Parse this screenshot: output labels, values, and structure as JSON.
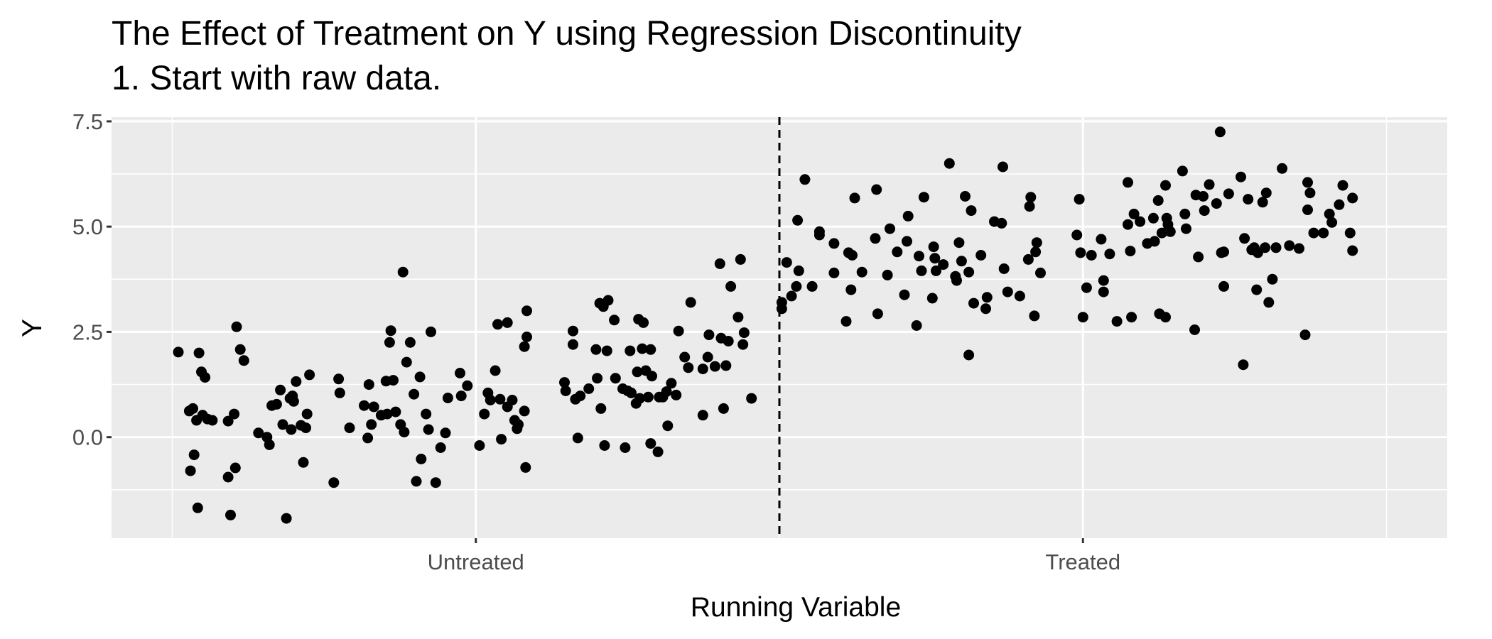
{
  "chart_data": {
    "type": "scatter",
    "title": "The Effect of Treatment on Y using Regression Discontinuity",
    "subtitle": "1. Start with raw data.",
    "xlabel": "Running Variable",
    "ylabel": "Y",
    "xlim": [
      -0.05,
      1.05
    ],
    "ylim": [
      -2.4,
      7.6
    ],
    "x_ticks": [
      {
        "value": 0.25,
        "label": "Untreated"
      },
      {
        "value": 0.75,
        "label": "Treated"
      }
    ],
    "y_ticks": [
      {
        "value": 0,
        "label": "0.0"
      },
      {
        "value": 2.5,
        "label": "2.5"
      },
      {
        "value": 5,
        "label": "5.0"
      },
      {
        "value": 7.5,
        "label": "7.5"
      }
    ],
    "cutoff": 0.5,
    "grid": true,
    "points": [
      [
        0.005,
        2.02
      ],
      [
        0.014,
        0.62
      ],
      [
        0.015,
        -0.8
      ],
      [
        0.017,
        0.68
      ],
      [
        0.018,
        -0.42
      ],
      [
        0.02,
        0.4
      ],
      [
        0.021,
        -1.68
      ],
      [
        0.022,
        2.0
      ],
      [
        0.024,
        1.55
      ],
      [
        0.025,
        0.52
      ],
      [
        0.027,
        1.42
      ],
      [
        0.029,
        0.43
      ],
      [
        0.033,
        0.4
      ],
      [
        0.046,
        0.38
      ],
      [
        0.046,
        -0.95
      ],
      [
        0.048,
        -1.85
      ],
      [
        0.051,
        0.55
      ],
      [
        0.052,
        -0.73
      ],
      [
        0.053,
        2.62
      ],
      [
        0.056,
        2.08
      ],
      [
        0.059,
        1.82
      ],
      [
        0.071,
        0.1
      ],
      [
        0.078,
        0.0
      ],
      [
        0.08,
        -0.18
      ],
      [
        0.082,
        0.75
      ],
      [
        0.086,
        0.78
      ],
      [
        0.089,
        1.12
      ],
      [
        0.091,
        0.3
      ],
      [
        0.094,
        -1.93
      ],
      [
        0.097,
        0.92
      ],
      [
        0.098,
        0.18
      ],
      [
        0.099,
        0.98
      ],
      [
        0.1,
        0.85
      ],
      [
        0.102,
        1.32
      ],
      [
        0.106,
        0.28
      ],
      [
        0.108,
        -0.6
      ],
      [
        0.11,
        0.22
      ],
      [
        0.111,
        0.55
      ],
      [
        0.113,
        1.48
      ],
      [
        0.133,
        -1.08
      ],
      [
        0.137,
        1.38
      ],
      [
        0.138,
        1.05
      ],
      [
        0.146,
        0.22
      ],
      [
        0.158,
        0.75
      ],
      [
        0.161,
        -0.02
      ],
      [
        0.162,
        1.25
      ],
      [
        0.164,
        0.3
      ],
      [
        0.166,
        0.72
      ],
      [
        0.172,
        0.52
      ],
      [
        0.176,
        1.33
      ],
      [
        0.177,
        0.55
      ],
      [
        0.179,
        2.25
      ],
      [
        0.18,
        2.53
      ],
      [
        0.182,
        1.35
      ],
      [
        0.184,
        0.6
      ],
      [
        0.188,
        0.3
      ],
      [
        0.19,
        3.92
      ],
      [
        0.191,
        0.12
      ],
      [
        0.193,
        1.78
      ],
      [
        0.196,
        2.25
      ],
      [
        0.199,
        1.02
      ],
      [
        0.201,
        -1.05
      ],
      [
        0.204,
        1.43
      ],
      [
        0.205,
        -0.52
      ],
      [
        0.209,
        0.55
      ],
      [
        0.211,
        0.18
      ],
      [
        0.213,
        2.5
      ],
      [
        0.217,
        -1.08
      ],
      [
        0.221,
        -0.25
      ],
      [
        0.225,
        0.1
      ],
      [
        0.227,
        0.93
      ],
      [
        0.237,
        1.52
      ],
      [
        0.238,
        0.98
      ],
      [
        0.243,
        1.22
      ],
      [
        0.253,
        -0.2
      ],
      [
        0.257,
        0.55
      ],
      [
        0.26,
        1.05
      ],
      [
        0.262,
        0.88
      ],
      [
        0.266,
        1.58
      ],
      [
        0.268,
        2.68
      ],
      [
        0.27,
        0.9
      ],
      [
        0.271,
        -0.05
      ],
      [
        0.276,
        2.72
      ],
      [
        0.276,
        0.72
      ],
      [
        0.28,
        0.88
      ],
      [
        0.282,
        0.4
      ],
      [
        0.284,
        0.2
      ],
      [
        0.285,
        0.3
      ],
      [
        0.29,
        0.62
      ],
      [
        0.29,
        2.15
      ],
      [
        0.291,
        -0.72
      ],
      [
        0.292,
        2.38
      ],
      [
        0.292,
        3.0
      ],
      [
        0.323,
        1.3
      ],
      [
        0.324,
        1.1
      ],
      [
        0.33,
        2.2
      ],
      [
        0.33,
        2.52
      ],
      [
        0.332,
        0.9
      ],
      [
        0.334,
        -0.02
      ],
      [
        0.336,
        0.98
      ],
      [
        0.343,
        1.15
      ],
      [
        0.349,
        2.08
      ],
      [
        0.35,
        1.4
      ],
      [
        0.352,
        3.18
      ],
      [
        0.353,
        0.68
      ],
      [
        0.355,
        3.1
      ],
      [
        0.356,
        -0.2
      ],
      [
        0.358,
        2.05
      ],
      [
        0.359,
        3.25
      ],
      [
        0.364,
        2.78
      ],
      [
        0.365,
        1.4
      ],
      [
        0.371,
        1.15
      ],
      [
        0.373,
        -0.25
      ],
      [
        0.375,
        1.1
      ],
      [
        0.377,
        2.05
      ],
      [
        0.378,
        1.05
      ],
      [
        0.382,
        0.8
      ],
      [
        0.383,
        1.55
      ],
      [
        0.384,
        2.8
      ],
      [
        0.385,
        0.92
      ],
      [
        0.387,
        2.1
      ],
      [
        0.388,
        2.72
      ],
      [
        0.39,
        1.58
      ],
      [
        0.392,
        0.95
      ],
      [
        0.394,
        2.08
      ],
      [
        0.394,
        -0.15
      ],
      [
        0.395,
        1.45
      ],
      [
        0.4,
        -0.35
      ],
      [
        0.401,
        0.95
      ],
      [
        0.404,
        0.95
      ],
      [
        0.407,
        1.08
      ],
      [
        0.408,
        0.27
      ],
      [
        0.411,
        1.28
      ],
      [
        0.415,
        1.0
      ],
      [
        0.417,
        2.52
      ],
      [
        0.422,
        1.9
      ],
      [
        0.425,
        1.65
      ],
      [
        0.427,
        3.2
      ],
      [
        0.437,
        0.52
      ],
      [
        0.437,
        1.62
      ],
      [
        0.441,
        1.9
      ],
      [
        0.442,
        2.43
      ],
      [
        0.447,
        1.68
      ],
      [
        0.451,
        4.12
      ],
      [
        0.452,
        2.35
      ],
      [
        0.454,
        0.68
      ],
      [
        0.456,
        1.7
      ],
      [
        0.458,
        2.28
      ],
      [
        0.46,
        3.58
      ],
      [
        0.466,
        2.85
      ],
      [
        0.468,
        4.22
      ],
      [
        0.47,
        2.2
      ],
      [
        0.471,
        2.48
      ],
      [
        0.477,
        0.92
      ],
      [
        0.502,
        3.05
      ],
      [
        0.502,
        3.2
      ],
      [
        0.506,
        4.15
      ],
      [
        0.51,
        3.35
      ],
      [
        0.514,
        3.58
      ],
      [
        0.515,
        5.15
      ],
      [
        0.516,
        3.95
      ],
      [
        0.521,
        6.12
      ],
      [
        0.527,
        3.58
      ],
      [
        0.533,
        4.8
      ],
      [
        0.533,
        4.88
      ],
      [
        0.545,
        3.9
      ],
      [
        0.545,
        4.6
      ],
      [
        0.555,
        2.75
      ],
      [
        0.557,
        4.38
      ],
      [
        0.559,
        3.5
      ],
      [
        0.56,
        4.32
      ],
      [
        0.562,
        5.68
      ],
      [
        0.568,
        3.92
      ],
      [
        0.579,
        4.72
      ],
      [
        0.58,
        5.88
      ],
      [
        0.581,
        2.93
      ],
      [
        0.589,
        3.85
      ],
      [
        0.591,
        4.95
      ],
      [
        0.597,
        4.4
      ],
      [
        0.603,
        3.38
      ],
      [
        0.605,
        4.65
      ],
      [
        0.606,
        5.25
      ],
      [
        0.613,
        2.65
      ],
      [
        0.615,
        4.3
      ],
      [
        0.617,
        3.95
      ],
      [
        0.619,
        5.7
      ],
      [
        0.626,
        3.3
      ],
      [
        0.627,
        4.52
      ],
      [
        0.628,
        4.25
      ],
      [
        0.629,
        3.95
      ],
      [
        0.635,
        4.1
      ],
      [
        0.64,
        6.5
      ],
      [
        0.645,
        3.82
      ],
      [
        0.646,
        3.72
      ],
      [
        0.648,
        4.62
      ],
      [
        0.65,
        4.18
      ],
      [
        0.653,
        5.72
      ],
      [
        0.656,
        1.95
      ],
      [
        0.656,
        3.92
      ],
      [
        0.658,
        5.38
      ],
      [
        0.66,
        3.18
      ],
      [
        0.666,
        4.32
      ],
      [
        0.67,
        3.05
      ],
      [
        0.671,
        3.32
      ],
      [
        0.677,
        5.12
      ],
      [
        0.683,
        5.08
      ],
      [
        0.684,
        6.42
      ],
      [
        0.685,
        4.0
      ],
      [
        0.688,
        3.45
      ],
      [
        0.698,
        3.35
      ],
      [
        0.705,
        4.22
      ],
      [
        0.706,
        5.48
      ],
      [
        0.707,
        5.7
      ],
      [
        0.71,
        2.88
      ],
      [
        0.711,
        4.4
      ],
      [
        0.712,
        4.62
      ],
      [
        0.715,
        3.9
      ],
      [
        0.745,
        4.8
      ],
      [
        0.747,
        5.65
      ],
      [
        0.748,
        4.38
      ],
      [
        0.75,
        2.85
      ],
      [
        0.753,
        3.55
      ],
      [
        0.757,
        4.32
      ],
      [
        0.765,
        4.7
      ],
      [
        0.767,
        3.45
      ],
      [
        0.767,
        3.72
      ],
      [
        0.772,
        4.35
      ],
      [
        0.778,
        2.75
      ],
      [
        0.787,
        5.05
      ],
      [
        0.787,
        6.05
      ],
      [
        0.789,
        4.42
      ],
      [
        0.79,
        2.85
      ],
      [
        0.792,
        5.3
      ],
      [
        0.797,
        5.12
      ],
      [
        0.803,
        4.6
      ],
      [
        0.808,
        5.2
      ],
      [
        0.809,
        4.65
      ],
      [
        0.812,
        5.62
      ],
      [
        0.813,
        2.93
      ],
      [
        0.815,
        4.85
      ],
      [
        0.818,
        5.98
      ],
      [
        0.818,
        2.85
      ],
      [
        0.819,
        5.2
      ],
      [
        0.82,
        5.05
      ],
      [
        0.822,
        4.88
      ],
      [
        0.832,
        6.32
      ],
      [
        0.834,
        5.3
      ],
      [
        0.835,
        4.95
      ],
      [
        0.843,
        5.75
      ],
      [
        0.845,
        4.28
      ],
      [
        0.842,
        2.55
      ],
      [
        0.849,
        5.72
      ],
      [
        0.85,
        5.38
      ],
      [
        0.854,
        6.0
      ],
      [
        0.86,
        5.55
      ],
      [
        0.863,
        7.25
      ],
      [
        0.864,
        4.38
      ],
      [
        0.866,
        3.58
      ],
      [
        0.866,
        4.4
      ],
      [
        0.87,
        5.78
      ],
      [
        0.88,
        6.18
      ],
      [
        0.882,
        1.72
      ],
      [
        0.883,
        4.72
      ],
      [
        0.886,
        5.65
      ],
      [
        0.889,
        4.45
      ],
      [
        0.891,
        4.5
      ],
      [
        0.893,
        3.5
      ],
      [
        0.894,
        4.38
      ],
      [
        0.898,
        5.58
      ],
      [
        0.9,
        4.5
      ],
      [
        0.901,
        5.8
      ],
      [
        0.903,
        3.2
      ],
      [
        0.906,
        3.75
      ],
      [
        0.909,
        4.5
      ],
      [
        0.914,
        6.38
      ],
      [
        0.92,
        4.55
      ],
      [
        0.928,
        4.48
      ],
      [
        0.933,
        2.43
      ],
      [
        0.935,
        5.4
      ],
      [
        0.935,
        6.05
      ],
      [
        0.937,
        5.8
      ],
      [
        0.94,
        4.85
      ],
      [
        0.948,
        4.85
      ],
      [
        0.953,
        5.3
      ],
      [
        0.955,
        5.1
      ],
      [
        0.961,
        5.52
      ],
      [
        0.964,
        5.98
      ],
      [
        0.97,
        4.85
      ],
      [
        0.972,
        5.68
      ],
      [
        0.972,
        4.43
      ]
    ]
  }
}
